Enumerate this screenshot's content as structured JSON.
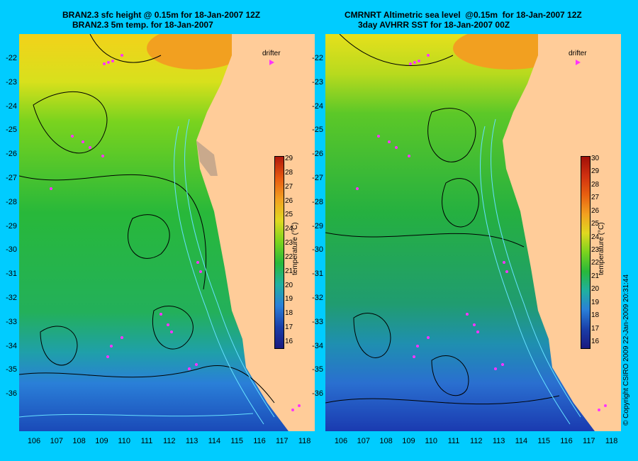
{
  "left": {
    "title_line1": "BRAN2.3 sfc height @ 0.15m for 18-Jan-2007 12Z",
    "title_line2": "BRAN2.3 5m temp. for 18-Jan-2007",
    "colorbar_ticks": [
      "16",
      "17",
      "18",
      "19",
      "20",
      "21",
      "22",
      "23",
      "24",
      "25",
      "26",
      "27",
      "28",
      "29"
    ],
    "colorbar_label": "temperature (°C)",
    "drifter_label": "drifter"
  },
  "right": {
    "title_line1": "CMRNRT Altimetric sea level  @0.15m  for 18-Jan-2007 12Z",
    "title_line2": "3day AVHRR SST for 18-Jan-2007 00Z",
    "colorbar_ticks": [
      "16",
      "17",
      "18",
      "19",
      "20",
      "21",
      "22",
      "23",
      "24",
      "25",
      "26",
      "27",
      "28",
      "29",
      "30"
    ],
    "colorbar_label": "temperature (°C)",
    "drifter_label": "drifter"
  },
  "y_ticks": [
    "-22",
    "-23",
    "-24",
    "-25",
    "-26",
    "-27",
    "-28",
    "-29",
    "-30",
    "-31",
    "-32",
    "-33",
    "-34",
    "-35",
    "-36"
  ],
  "x_ticks": [
    "106",
    "107",
    "108",
    "109",
    "110",
    "111",
    "112",
    "113",
    "114",
    "115",
    "116",
    "117",
    "118"
  ],
  "copyright": "© Copyright CSIRO 2009   22-Jan-2009 20:31:44",
  "colors": {
    "background": "#00ccff",
    "land": "#ffcc99",
    "drifter": "#ff33ff",
    "contour": "#000000",
    "isobath": "#66e0ff"
  }
}
